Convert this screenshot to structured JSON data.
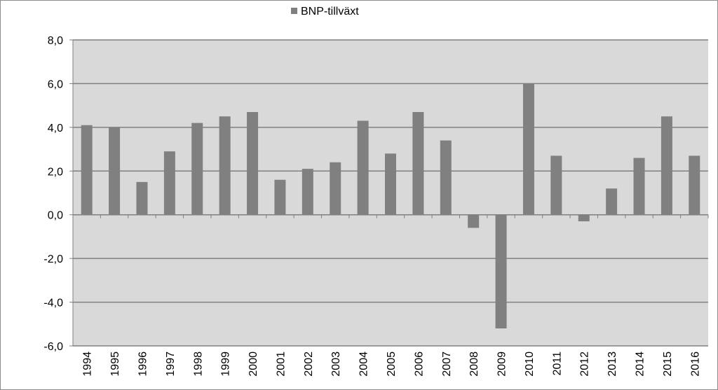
{
  "chart_data": {
    "type": "bar",
    "categories": [
      "1994",
      "1995",
      "1996",
      "1997",
      "1998",
      "1999",
      "2000",
      "2001",
      "2002",
      "2003",
      "2004",
      "2005",
      "2006",
      "2007",
      "2008",
      "2009",
      "2010",
      "2011",
      "2012",
      "2013",
      "2014",
      "2015",
      "2016"
    ],
    "series": [
      {
        "name": "BNP-tillväxt",
        "values": [
          4.1,
          4.0,
          1.5,
          2.9,
          4.2,
          4.5,
          4.7,
          1.6,
          2.1,
          2.4,
          4.3,
          2.8,
          4.7,
          3.4,
          -0.6,
          -5.2,
          6.0,
          2.7,
          -0.3,
          1.2,
          2.6,
          4.5,
          2.7
        ]
      }
    ],
    "ylim": [
      -6,
      8
    ],
    "yticks": [
      8,
      6,
      4,
      2,
      0,
      -2,
      -4,
      -6
    ],
    "ytick_labels": [
      "8,0",
      "6,0",
      "4,0",
      "2,0",
      "0,0",
      "-2,0",
      "-4,0",
      "-6,0"
    ],
    "grid": true,
    "legend": "top",
    "colors": {
      "bar": "#808080",
      "plot_background": "#d9d9d9",
      "gridline": "#808080"
    }
  }
}
